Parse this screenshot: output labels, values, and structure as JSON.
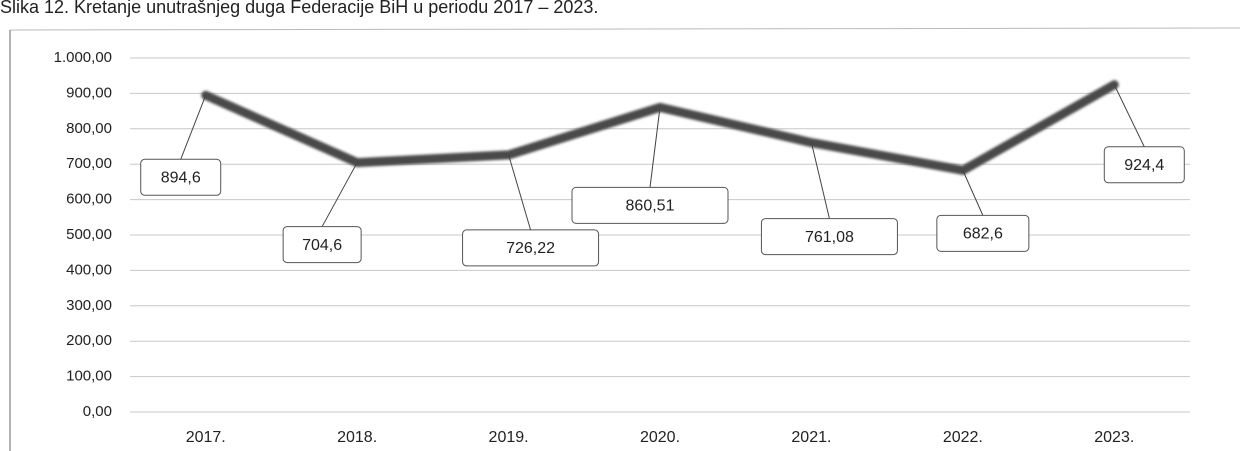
{
  "chart_data": {
    "type": "line",
    "title": "Slika 12. Kretanje unutrašnjeg duga Federacije BiH u periodu 2017 – 2023.",
    "categories": [
      "2017.",
      "2018.",
      "2019.",
      "2020.",
      "2021.",
      "2022.",
      "2023."
    ],
    "series": [
      {
        "color": "#4a4a4a",
        "values": [
          894.6,
          704.6,
          726.22,
          860.51,
          761.08,
          682.6,
          924.4
        ],
        "value_labels": [
          "894,6",
          "704,6",
          "726,22",
          "860,51",
          "761,08",
          "682,6",
          "924,4"
        ]
      }
    ],
    "ylim": [
      0,
      1000
    ],
    "yticks": [
      {
        "value": 0,
        "label": "0,00"
      },
      {
        "value": 100,
        "label": "100,00"
      },
      {
        "value": 200,
        "label": "200,00"
      },
      {
        "value": 300,
        "label": "300,00"
      },
      {
        "value": 400,
        "label": "400,00"
      },
      {
        "value": 500,
        "label": "500,00"
      },
      {
        "value": 600,
        "label": "600,00"
      },
      {
        "value": 700,
        "label": "700,00"
      },
      {
        "value": 800,
        "label": "800,00"
      },
      {
        "value": 900,
        "label": "900,00"
      },
      {
        "value": 1000,
        "label": "1.000,00"
      }
    ],
    "grid": true
  }
}
